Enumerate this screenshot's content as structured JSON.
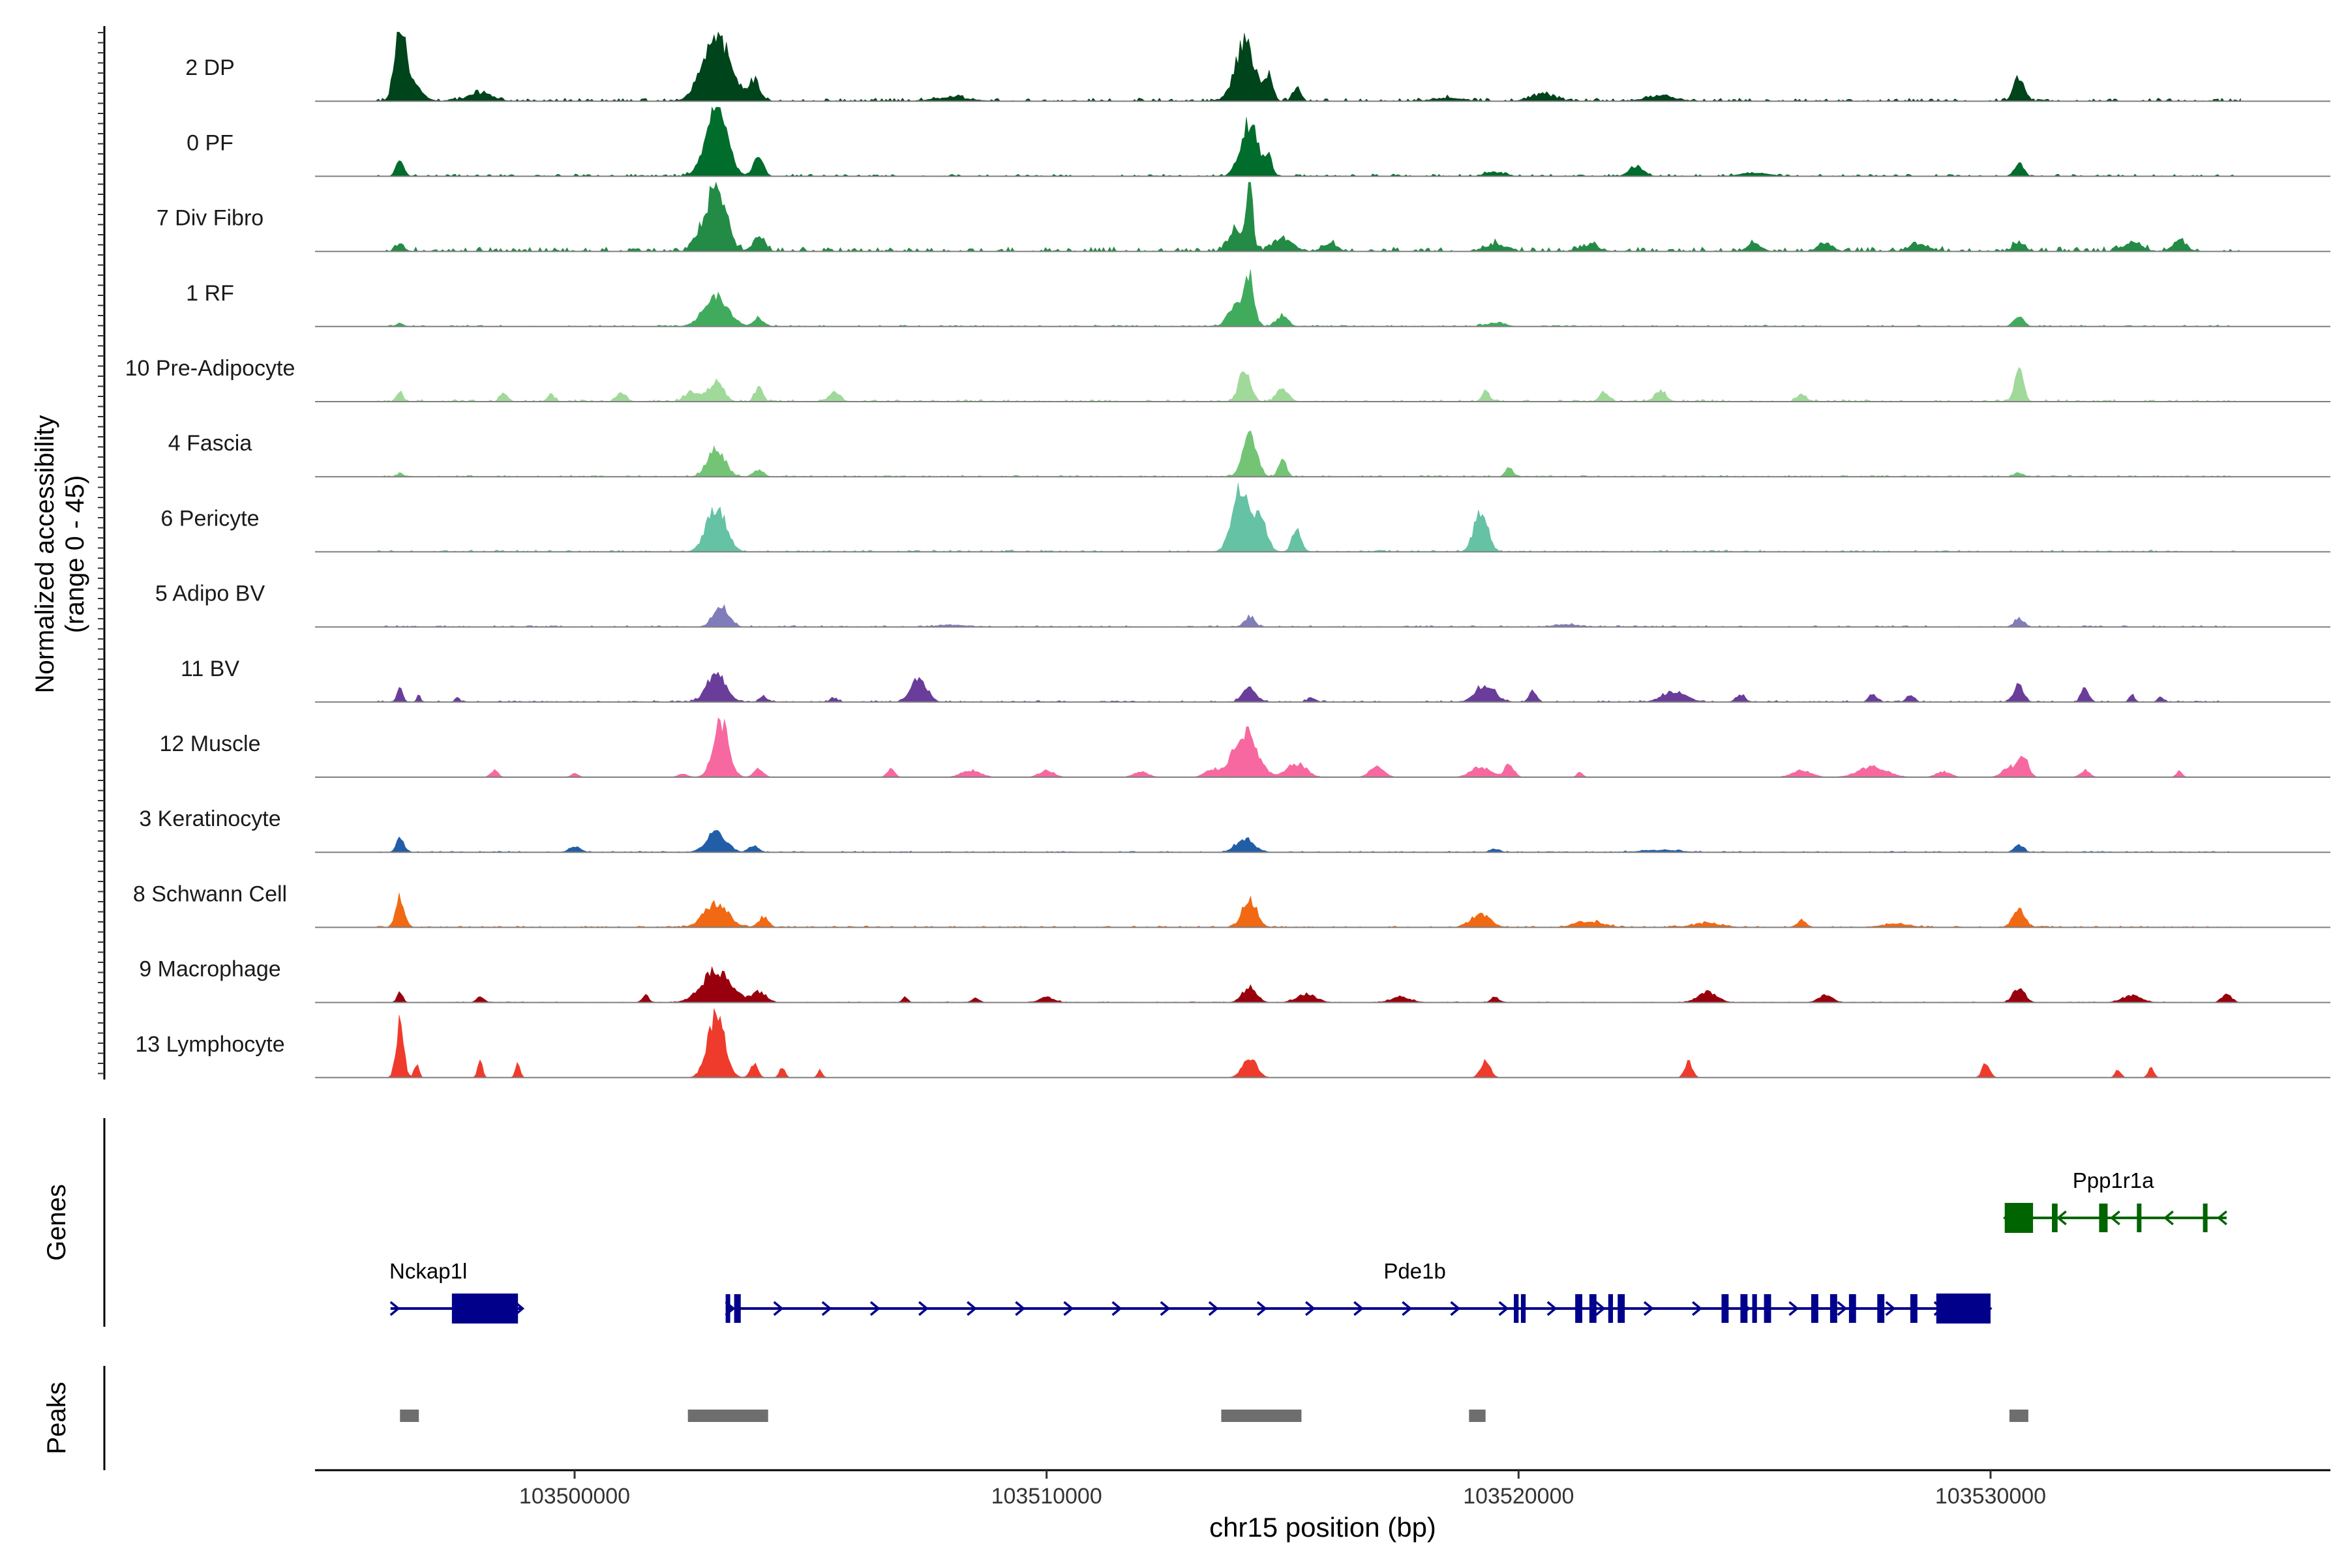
{
  "chart_data": {
    "type": "area",
    "title": "",
    "chrom": "chr15",
    "xlabel": "chr15 position (bp)",
    "xlim": [
      103494500,
      103537200
    ],
    "x_ticks": [
      103500000,
      103510000,
      103520000,
      103530000
    ],
    "x_tick_labels": [
      "103500000",
      "103510000",
      "103520000",
      "103530000"
    ],
    "coverage_ylabel": "Normalized accessibility\n(range 0 - 45)",
    "ylim": [
      0,
      45
    ],
    "tracks": [
      {
        "name": "2 DP",
        "color": "#00441B",
        "peaks": [
          [
            103496300,
            1.0,
            110
          ],
          [
            103496550,
            0.25,
            200
          ],
          [
            103498000,
            0.12,
            250
          ],
          [
            103503000,
            1.0,
            280
          ],
          [
            103503800,
            0.3,
            120
          ],
          [
            103508000,
            0.05,
            400
          ],
          [
            103514200,
            0.85,
            200
          ],
          [
            103514700,
            0.35,
            90
          ],
          [
            103515300,
            0.2,
            80
          ],
          [
            103518500,
            0.05,
            300
          ],
          [
            103520500,
            0.1,
            250
          ],
          [
            103523000,
            0.08,
            300
          ],
          [
            103530600,
            0.35,
            110
          ]
        ],
        "noise": 0.04
      },
      {
        "name": "0 PF",
        "color": "#006D2C",
        "peaks": [
          [
            103496300,
            0.25,
            80
          ],
          [
            103503000,
            1.0,
            220
          ],
          [
            103503900,
            0.3,
            100
          ],
          [
            103514300,
            0.75,
            180
          ],
          [
            103514700,
            0.25,
            80
          ],
          [
            103519500,
            0.06,
            200
          ],
          [
            103522500,
            0.15,
            150
          ],
          [
            103525000,
            0.05,
            300
          ],
          [
            103530600,
            0.2,
            90
          ]
        ],
        "noise": 0.03
      },
      {
        "name": "7 Div Fibro",
        "color": "#238B45",
        "peaks": [
          [
            103496300,
            0.1,
            90
          ],
          [
            103502600,
            0.15,
            120
          ],
          [
            103503000,
            1.0,
            200
          ],
          [
            103503900,
            0.2,
            120
          ],
          [
            103514000,
            0.3,
            150
          ],
          [
            103514300,
            0.95,
            70
          ],
          [
            103515000,
            0.2,
            200
          ],
          [
            103516000,
            0.12,
            150
          ],
          [
            103519500,
            0.1,
            200
          ],
          [
            103521500,
            0.08,
            200
          ],
          [
            103525000,
            0.1,
            150
          ],
          [
            103526500,
            0.12,
            150
          ],
          [
            103528500,
            0.1,
            200
          ],
          [
            103530600,
            0.12,
            120
          ],
          [
            103533000,
            0.12,
            200
          ],
          [
            103534000,
            0.15,
            150
          ]
        ],
        "noise": 0.06
      },
      {
        "name": "1 RF",
        "color": "#41AB5D",
        "peaks": [
          [
            103496300,
            0.05,
            80
          ],
          [
            103503000,
            0.45,
            250
          ],
          [
            103503900,
            0.12,
            100
          ],
          [
            103514300,
            0.7,
            100
          ],
          [
            103514000,
            0.3,
            150
          ],
          [
            103515000,
            0.15,
            120
          ],
          [
            103519500,
            0.05,
            200
          ],
          [
            103530600,
            0.15,
            100
          ]
        ],
        "noise": 0.02
      },
      {
        "name": "10 Pre-Adipocyte",
        "color": "#A1D99B",
        "peaks": [
          [
            103496300,
            0.15,
            60
          ],
          [
            103498500,
            0.12,
            80
          ],
          [
            103499500,
            0.1,
            80
          ],
          [
            103501000,
            0.12,
            100
          ],
          [
            103502500,
            0.15,
            150
          ],
          [
            103503000,
            0.3,
            150
          ],
          [
            103503900,
            0.2,
            80
          ],
          [
            103505500,
            0.12,
            120
          ],
          [
            103514200,
            0.45,
            120
          ],
          [
            103515000,
            0.2,
            120
          ],
          [
            103519300,
            0.15,
            80
          ],
          [
            103521800,
            0.12,
            100
          ],
          [
            103523000,
            0.15,
            120
          ],
          [
            103526000,
            0.1,
            100
          ],
          [
            103530600,
            0.5,
            90
          ]
        ],
        "noise": 0.03
      },
      {
        "name": "4 Fascia",
        "color": "#74C476",
        "peaks": [
          [
            103496300,
            0.05,
            60
          ],
          [
            103503000,
            0.4,
            180
          ],
          [
            103503900,
            0.1,
            100
          ],
          [
            103514300,
            0.65,
            140
          ],
          [
            103515000,
            0.25,
            80
          ],
          [
            103519800,
            0.12,
            80
          ],
          [
            103530600,
            0.05,
            100
          ]
        ],
        "noise": 0.02
      },
      {
        "name": "6 Pericyte",
        "color": "#66C2A4",
        "peaks": [
          [
            103503000,
            0.65,
            200
          ],
          [
            103514100,
            0.9,
            170
          ],
          [
            103514500,
            0.5,
            150
          ],
          [
            103515300,
            0.3,
            100
          ],
          [
            103519200,
            0.6,
            140
          ]
        ],
        "noise": 0.025
      },
      {
        "name": "5 Adipo BV",
        "color": "#807DBA",
        "peaks": [
          [
            103503100,
            0.3,
            160
          ],
          [
            103514300,
            0.15,
            100
          ],
          [
            103530600,
            0.12,
            100
          ],
          [
            103508000,
            0.03,
            300
          ],
          [
            103521000,
            0.03,
            300
          ]
        ],
        "noise": 0.02
      },
      {
        "name": "11 BV",
        "color": "#6A3D9A",
        "peaks": [
          [
            103496300,
            0.25,
            60
          ],
          [
            103496700,
            0.1,
            40
          ],
          [
            103497500,
            0.08,
            40
          ],
          [
            103503000,
            0.4,
            200
          ],
          [
            103504000,
            0.08,
            80
          ],
          [
            103505500,
            0.05,
            80
          ],
          [
            103507300,
            0.35,
            160
          ],
          [
            103514300,
            0.2,
            140
          ],
          [
            103515600,
            0.06,
            80
          ],
          [
            103519300,
            0.25,
            200
          ],
          [
            103520300,
            0.15,
            80
          ],
          [
            103523300,
            0.15,
            250
          ],
          [
            103524700,
            0.1,
            100
          ],
          [
            103527500,
            0.12,
            80
          ],
          [
            103528300,
            0.1,
            80
          ],
          [
            103530600,
            0.25,
            100
          ],
          [
            103532000,
            0.2,
            80
          ],
          [
            103533000,
            0.1,
            60
          ],
          [
            103533600,
            0.08,
            60
          ]
        ],
        "noise": 0.02
      },
      {
        "name": "12 Muscle",
        "color": "#F768A1",
        "peaks": [
          [
            103498300,
            0.1,
            80
          ],
          [
            103500000,
            0.05,
            80
          ],
          [
            103502300,
            0.05,
            100
          ],
          [
            103503100,
            0.8,
            160
          ],
          [
            103503900,
            0.12,
            100
          ],
          [
            103506700,
            0.12,
            80
          ],
          [
            103508400,
            0.1,
            200
          ],
          [
            103510000,
            0.1,
            150
          ],
          [
            103512000,
            0.08,
            150
          ],
          [
            103513500,
            0.1,
            150
          ],
          [
            103514200,
            0.65,
            250
          ],
          [
            103515300,
            0.2,
            200
          ],
          [
            103517000,
            0.15,
            150
          ],
          [
            103519200,
            0.15,
            200
          ],
          [
            103519800,
            0.18,
            100
          ],
          [
            103521300,
            0.08,
            60
          ],
          [
            103526000,
            0.1,
            200
          ],
          [
            103527500,
            0.15,
            300
          ],
          [
            103529000,
            0.08,
            150
          ],
          [
            103530400,
            0.15,
            150
          ],
          [
            103530700,
            0.3,
            100
          ],
          [
            103532000,
            0.1,
            100
          ],
          [
            103534000,
            0.1,
            60
          ]
        ],
        "noise": 0.0
      },
      {
        "name": "3 Keratinocyte",
        "color": "#225EA8",
        "peaks": [
          [
            103496300,
            0.2,
            80
          ],
          [
            103500000,
            0.08,
            120
          ],
          [
            103503000,
            0.3,
            200
          ],
          [
            103503800,
            0.1,
            100
          ],
          [
            103514200,
            0.2,
            180
          ],
          [
            103519500,
            0.05,
            100
          ],
          [
            103530600,
            0.1,
            100
          ],
          [
            103523000,
            0.03,
            400
          ]
        ],
        "noise": 0.015
      },
      {
        "name": "8 Schwann Cell",
        "color": "#F16913",
        "peaks": [
          [
            103496300,
            0.45,
            90
          ],
          [
            103503000,
            0.35,
            250
          ],
          [
            103504000,
            0.15,
            100
          ],
          [
            103514300,
            0.4,
            150
          ],
          [
            103519200,
            0.2,
            200
          ],
          [
            103521500,
            0.08,
            300
          ],
          [
            103524000,
            0.06,
            300
          ],
          [
            103526000,
            0.1,
            100
          ],
          [
            103530600,
            0.25,
            130
          ],
          [
            103528000,
            0.05,
            300
          ]
        ],
        "noise": 0.02
      },
      {
        "name": "9 Macrophage",
        "color": "#99000D",
        "peaks": [
          [
            103496300,
            0.15,
            60
          ],
          [
            103498000,
            0.08,
            80
          ],
          [
            103501500,
            0.12,
            60
          ],
          [
            103503000,
            0.45,
            300
          ],
          [
            103503900,
            0.15,
            150
          ],
          [
            103507000,
            0.08,
            60
          ],
          [
            103508500,
            0.06,
            80
          ],
          [
            103510000,
            0.08,
            150
          ],
          [
            103514300,
            0.22,
            150
          ],
          [
            103515500,
            0.12,
            200
          ],
          [
            103517500,
            0.08,
            200
          ],
          [
            103519500,
            0.08,
            80
          ],
          [
            103524000,
            0.15,
            200
          ],
          [
            103526500,
            0.1,
            150
          ],
          [
            103530600,
            0.22,
            120
          ],
          [
            103533000,
            0.1,
            200
          ],
          [
            103535000,
            0.12,
            100
          ]
        ],
        "noise": 0.01
      },
      {
        "name": "13 Lymphocyte",
        "color": "#EF3B2C",
        "peaks": [
          [
            103496300,
            0.8,
            80
          ],
          [
            103496650,
            0.2,
            50
          ],
          [
            103498000,
            0.25,
            50
          ],
          [
            103498800,
            0.2,
            50
          ],
          [
            103503000,
            0.9,
            180
          ],
          [
            103503800,
            0.2,
            80
          ],
          [
            103504400,
            0.15,
            60
          ],
          [
            103505200,
            0.12,
            50
          ],
          [
            103514300,
            0.3,
            150
          ],
          [
            103519300,
            0.25,
            100
          ],
          [
            103523600,
            0.22,
            80
          ],
          [
            103529900,
            0.2,
            80
          ],
          [
            103532700,
            0.12,
            60
          ],
          [
            103533400,
            0.15,
            60
          ]
        ],
        "noise": 0.0
      }
    ],
    "genes_ylabel": "Genes",
    "genes": [
      {
        "name": "Nckap1l",
        "color": "#00008B",
        "strand": "+",
        "row": 1,
        "start": 103496100,
        "end": 103498900,
        "exons": [
          [
            103497400,
            103498800
          ]
        ],
        "label_x": 103496900
      },
      {
        "name": "Pde1b",
        "color": "#00008B",
        "strand": "+",
        "row": 1,
        "start": 103503200,
        "end": 103530000,
        "exons": [
          [
            103503200,
            103503280
          ],
          [
            103503380,
            103503520
          ],
          [
            103519900,
            103520000
          ],
          [
            103520050,
            103520150
          ],
          [
            103521200,
            103521350
          ],
          [
            103521500,
            103521650
          ],
          [
            103521900,
            103522000
          ],
          [
            103522100,
            103522250
          ],
          [
            103524300,
            103524450
          ],
          [
            103524700,
            103524850
          ],
          [
            103524950,
            103525050
          ],
          [
            103525200,
            103525350
          ],
          [
            103526200,
            103526350
          ],
          [
            103526600,
            103526750
          ],
          [
            103527000,
            103527150
          ],
          [
            103527600,
            103527750
          ],
          [
            103528300,
            103528450
          ],
          [
            103528850,
            103530000
          ]
        ],
        "label_x": 103517800
      },
      {
        "name": "Ppp1r1a",
        "color": "#006400",
        "strand": "-",
        "row": 0,
        "start": 103530300,
        "end": 103535000,
        "exons": [
          [
            103530300,
            103530900
          ],
          [
            103531300,
            103531420
          ],
          [
            103532300,
            103532480
          ],
          [
            103533100,
            103533180
          ],
          [
            103534500,
            103534560
          ]
        ],
        "label_x": 103532600
      }
    ],
    "peaks_ylabel": "Peaks",
    "peak_regions": [
      [
        103496300,
        103496700
      ],
      [
        103502400,
        103504100
      ],
      [
        103513700,
        103515400
      ],
      [
        103518950,
        103519300
      ],
      [
        103530400,
        103530800
      ]
    ]
  }
}
